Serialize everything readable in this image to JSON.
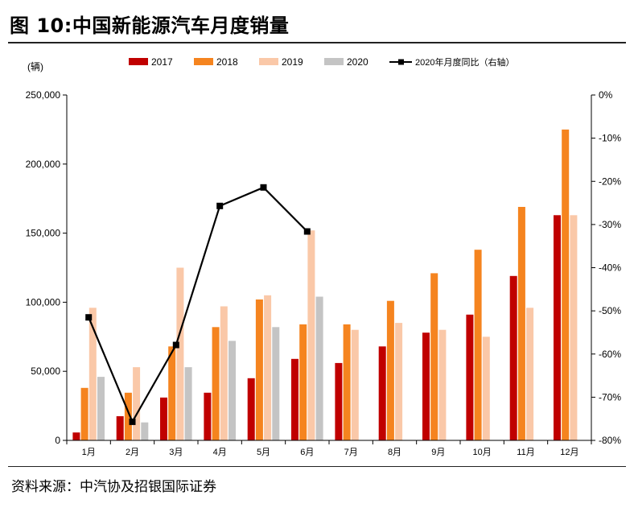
{
  "title": "图 10:中国新能源汽车月度销量",
  "source": "资料来源：中汽协及招银国际证券",
  "chart_data": {
    "type": "bar",
    "unit_label": "(辆)",
    "categories": [
      "1月",
      "2月",
      "3月",
      "4月",
      "5月",
      "6月",
      "7月",
      "8月",
      "9月",
      "10月",
      "11月",
      "12月"
    ],
    "series": [
      {
        "name": "2017",
        "type": "bar",
        "axis": "left",
        "color": "#c00000",
        "values": [
          5700,
          17500,
          31000,
          34500,
          45000,
          59000,
          56000,
          68000,
          78000,
          91000,
          119000,
          163000
        ]
      },
      {
        "name": "2018",
        "type": "bar",
        "axis": "left",
        "color": "#f5841f",
        "values": [
          38000,
          34500,
          68000,
          82000,
          102000,
          84000,
          84000,
          101000,
          121000,
          138000,
          169000,
          225000
        ]
      },
      {
        "name": "2019",
        "type": "bar",
        "axis": "left",
        "color": "#fac8a8",
        "values": [
          96000,
          53000,
          125000,
          97000,
          105000,
          152000,
          80000,
          85000,
          80000,
          75000,
          96000,
          163000
        ]
      },
      {
        "name": "2020",
        "type": "bar",
        "axis": "left",
        "color": "#c4c4c4",
        "values": [
          46000,
          13000,
          53000,
          72000,
          82000,
          104000,
          null,
          null,
          null,
          null,
          null,
          null
        ]
      },
      {
        "name": "2020年月度同比（右轴）",
        "type": "line",
        "axis": "right",
        "color": "#000000",
        "values": [
          -51.5,
          -75.7,
          -57.9,
          -25.7,
          -21.4,
          -31.6,
          null,
          null,
          null,
          null,
          null,
          null
        ]
      }
    ],
    "y_left": {
      "min": 0,
      "max": 250000,
      "ticks": [
        "0",
        "50,000",
        "100,000",
        "150,000",
        "200,000",
        "250,000"
      ]
    },
    "y_right": {
      "min": -80,
      "max": 0,
      "ticks": [
        "-80%",
        "-70%",
        "-60%",
        "-50%",
        "-40%",
        "-30%",
        "-20%",
        "-10%",
        "0%"
      ]
    },
    "legend_position": "top",
    "grid": false
  }
}
